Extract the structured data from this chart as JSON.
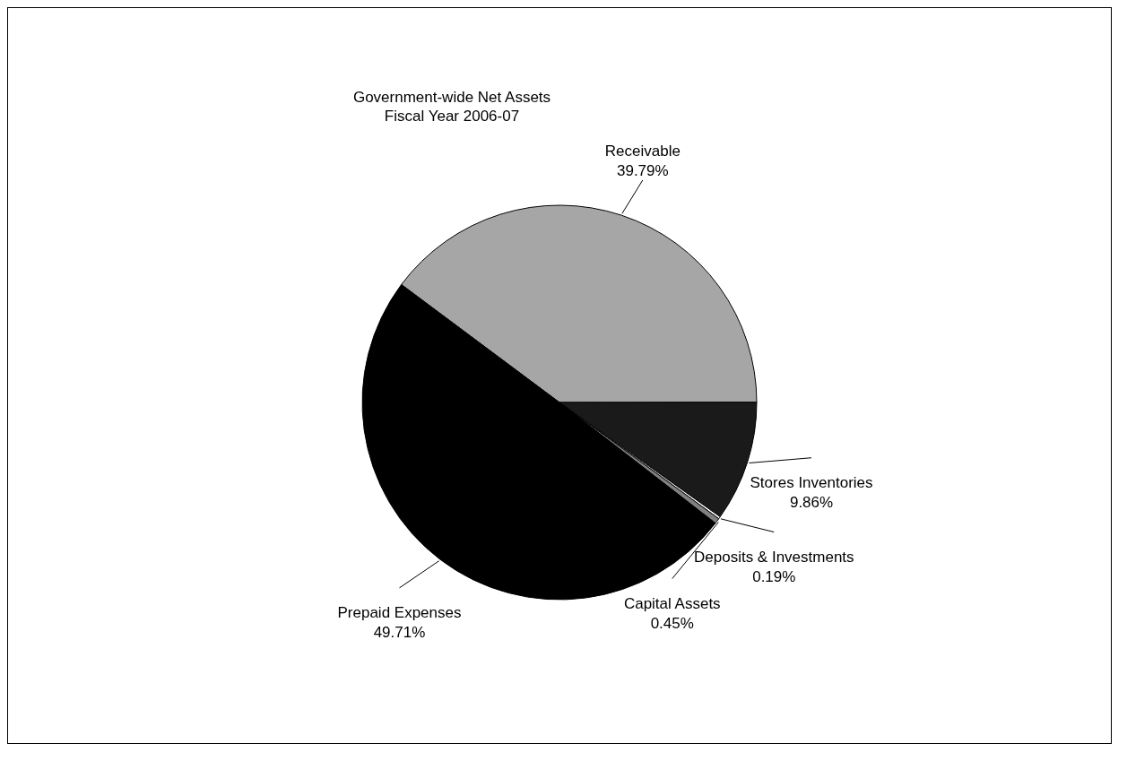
{
  "chart_data": {
    "type": "pie",
    "title": "Government-wide Net Assets",
    "subtitle": "Fiscal Year 2006-07",
    "categories": [
      "Receivable",
      "Stores Inventories",
      "Deposits & Investments",
      "Capital Assets",
      "Prepaid Expenses"
    ],
    "values": [
      39.79,
      9.86,
      0.19,
      0.45,
      49.71
    ],
    "value_labels": [
      "39.79%",
      "9.86%",
      "0.19%",
      "0.45%",
      "49.71%"
    ],
    "colors": [
      "#a6a6a6",
      "#1a1a1a",
      "#ffffff",
      "#808080",
      "#000000"
    ],
    "legend": false
  }
}
